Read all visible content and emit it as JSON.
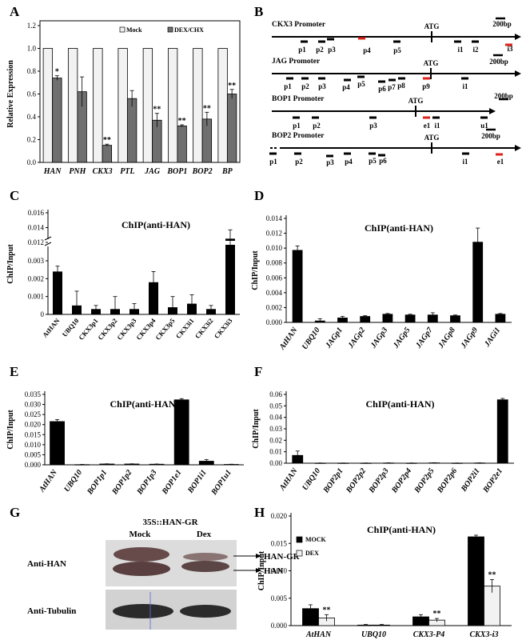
{
  "panel_letters": [
    "A",
    "B",
    "C",
    "D",
    "E",
    "F",
    "G",
    "H"
  ],
  "chart_data": [
    {
      "id": "A",
      "type": "bar",
      "categories": [
        "HAN",
        "PNH",
        "CKX3",
        "PTL",
        "JAG",
        "BOP1",
        "BOP2",
        "BP"
      ],
      "series": [
        {
          "name": "Mock",
          "values": [
            1,
            1,
            1,
            1,
            1,
            1,
            1,
            1
          ],
          "errors": [
            0,
            0,
            0,
            0,
            0,
            0,
            0,
            0
          ],
          "color": "#f2f2f2"
        },
        {
          "name": "DEX/CHX",
          "values": [
            0.74,
            0.62,
            0.15,
            0.56,
            0.37,
            0.32,
            0.38,
            0.6
          ],
          "errors": [
            0.02,
            0.13,
            0.01,
            0.07,
            0.06,
            0.01,
            0.06,
            0.04
          ],
          "color": "#6f6f6f"
        }
      ],
      "significance": [
        "*",
        "",
        "**",
        "",
        "**",
        "**",
        "**",
        "**"
      ],
      "ylabel": "Relative Expression",
      "ylim": [
        0,
        1.2
      ],
      "yticks": [
        0,
        0.2,
        0.4,
        0.6,
        0.8,
        1,
        1.2
      ],
      "ytick_labels": [
        "0.0",
        "0.2",
        "0.4",
        "0.6",
        "0.8",
        "1.0",
        "1.2"
      ],
      "legend": "top-center"
    },
    {
      "id": "C",
      "type": "bar",
      "title": "ChIP(anti-HAN)",
      "categories": [
        "AtHAN",
        "UBQ10",
        "CKX3p1",
        "CKX3p2",
        "CKX3p3",
        "CKX3p4",
        "CKX3p5",
        "CKX3i1",
        "CKX3i2",
        "CKX3i3"
      ],
      "series": [
        {
          "values": [
            0.0024,
            0.0005,
            0.0003,
            0.0003,
            0.0003,
            0.0018,
            0.0004,
            0.0006,
            0.0003,
            0.0125
          ],
          "errors": [
            0.0003,
            0.0008,
            0.0002,
            0.0007,
            0.0003,
            0.0006,
            0.0006,
            0.0005,
            0.0002,
            0.0012
          ],
          "color": "#000000"
        }
      ],
      "ylabel": "ChIP/Input",
      "axis_break": [
        0.003,
        0.01
      ],
      "yticks": [
        0,
        0.001,
        0.002,
        0.003,
        0.012,
        0.014,
        0.016
      ],
      "ytick_labels": [
        "0",
        "0.001",
        "0.002",
        "0.003",
        "0.012",
        "0.014",
        "0.016"
      ],
      "italic_categories": false
    },
    {
      "id": "D",
      "type": "bar",
      "title": "ChIP(anti-HAN)",
      "categories": [
        "AtHAN",
        "UBQ10",
        "JAGp1",
        "JAGp2",
        "JAGp3",
        "JAGp5",
        "JAGp7",
        "JAGp8",
        "JAGp9",
        "JAGi1"
      ],
      "series": [
        {
          "values": [
            0.0097,
            0.0002,
            0.0006,
            0.0008,
            0.0011,
            0.001,
            0.001,
            0.0009,
            0.0108,
            0.0011
          ],
          "errors": [
            0.0006,
            0.0003,
            0.0002,
            0.0001,
            0.0001,
            0.0001,
            0.0003,
            0.0001,
            0.0019,
            0.0001
          ],
          "color": "#000000"
        }
      ],
      "ylabel": "ChIP/Input",
      "ylim": [
        0,
        0.014
      ],
      "yticks": [
        0,
        0.002,
        0.004,
        0.006,
        0.008,
        0.01,
        0.012,
        0.014
      ],
      "ytick_labels": [
        "0.000",
        "0.002",
        "0.004",
        "0.006",
        "0.008",
        "0.010",
        "0.012",
        "0.014"
      ],
      "italic_categories": true
    },
    {
      "id": "E",
      "type": "bar",
      "title": "ChIP(anti-HAN)",
      "categories": [
        "AtHAN",
        "UBQ10",
        "BOP1p1",
        "BOP1p2",
        "BOP1p3",
        "BOP1e1",
        "BOP1i1",
        "BOP1u1"
      ],
      "series": [
        {
          "values": [
            0.0215,
            0.0001,
            0.0004,
            0.0004,
            0.0003,
            0.0323,
            0.0018,
            0.0002
          ],
          "errors": [
            0.001,
            0.0001,
            0.0001,
            0.0001,
            0.0001,
            0.0006,
            0.0008,
            0.0001
          ],
          "color": "#000000"
        }
      ],
      "ylabel": "ChIP/Input",
      "ylim": [
        0,
        0.035
      ],
      "yticks": [
        0,
        0.005,
        0.01,
        0.015,
        0.02,
        0.025,
        0.03,
        0.035
      ],
      "ytick_labels": [
        "0.000",
        "0.005",
        "0.010",
        "0.015",
        "0.020",
        "0.025",
        "0.030",
        "0.035"
      ],
      "italic_categories": true
    },
    {
      "id": "F",
      "type": "bar",
      "title": "ChIP(anti-HAN)",
      "categories": [
        "AtHAN",
        "UBQ10",
        "BOP2p1",
        "BOP2p2",
        "BOP2p3",
        "BOP2p4",
        "BOP2p5",
        "BOP2p6",
        "BOP2i1",
        "BOP2e1"
      ],
      "series": [
        {
          "values": [
            0.0068,
            0.0001,
            0.0001,
            0.0001,
            0.0002,
            0.0001,
            0.0003,
            0.0001,
            0.0002,
            0.0553
          ],
          "errors": [
            0.0038,
            0.0001,
            0.0001,
            0.0001,
            0.0001,
            0.0001,
            0.0001,
            0.0001,
            0.0001,
            0.0012
          ],
          "color": "#000000"
        }
      ],
      "ylabel": "ChIP/Input",
      "ylim": [
        0,
        0.06
      ],
      "yticks": [
        0,
        0.01,
        0.02,
        0.03,
        0.04,
        0.05,
        0.06
      ],
      "ytick_labels": [
        "0.00",
        "0.01",
        "0.02",
        "0.03",
        "0.04",
        "0.05",
        "0.06"
      ],
      "italic_categories": true
    },
    {
      "id": "H",
      "type": "bar",
      "title": "ChIP(anti-HAN)",
      "categories": [
        "AtHAN",
        "UBQ10",
        "CKX3-P4",
        "CKX3-i3"
      ],
      "series": [
        {
          "name": "MOCK",
          "values": [
            0.0031,
            0.0001,
            0.0016,
            0.0162
          ],
          "errors": [
            0.0007,
            0.0001,
            0.0004,
            0.0003
          ],
          "color": "#000000"
        },
        {
          "name": "DEX",
          "values": [
            0.0014,
            0.0001,
            0.001,
            0.0072
          ],
          "errors": [
            0.0006,
            0.0001,
            0.0003,
            0.0012
          ],
          "color": "#f2f2f2"
        }
      ],
      "significance": [
        [
          "",
          ""
        ],
        [
          "",
          ""
        ],
        [
          "",
          ""
        ],
        [
          "",
          ""
        ]
      ],
      "dex_significance": [
        "**",
        "",
        "**",
        "**"
      ],
      "ylabel": "ChIP/Input",
      "ylim": [
        0,
        0.02
      ],
      "yticks": [
        0,
        0.005,
        0.01,
        0.015,
        0.02
      ],
      "ytick_labels": [
        "0.000",
        "0.005",
        "0.010",
        "0.015",
        "0.020"
      ],
      "legend": "top-left",
      "italic_categories": true
    }
  ],
  "promoter_maps": {
    "scale_label": "200bp",
    "atg_label": "ATG",
    "rows": [
      {
        "name": "CKX3 Promoter",
        "labels": [
          "p1",
          "p2",
          "p3",
          "p4",
          "p5",
          "i1",
          "i2",
          "i3"
        ],
        "red": [
          "p4",
          "i3"
        ]
      },
      {
        "name": "JAG Promoter",
        "labels": [
          "p1",
          "p2",
          "p3",
          "p4",
          "p5",
          "p6",
          "p7",
          "p8",
          "p9",
          "i1"
        ],
        "red": [
          "p9"
        ]
      },
      {
        "name": "BOP1 Promoter",
        "labels": [
          "p1",
          "p2",
          "p3",
          "e1",
          "i1",
          "u1"
        ],
        "red": [
          "e1"
        ]
      },
      {
        "name": "BOP2 Promoter",
        "labels": [
          "p1",
          "p2",
          "p3",
          "p4",
          "p5",
          "p6",
          "i1",
          "e1"
        ],
        "red": [
          "e1"
        ]
      }
    ]
  },
  "western": {
    "title": "35S::HAN-GR",
    "lanes": [
      "Mock",
      "Dex"
    ],
    "rows": [
      "Anti-HAN",
      "Anti-Tubulin"
    ],
    "bands": [
      "HAN-GR",
      "HAN"
    ]
  }
}
